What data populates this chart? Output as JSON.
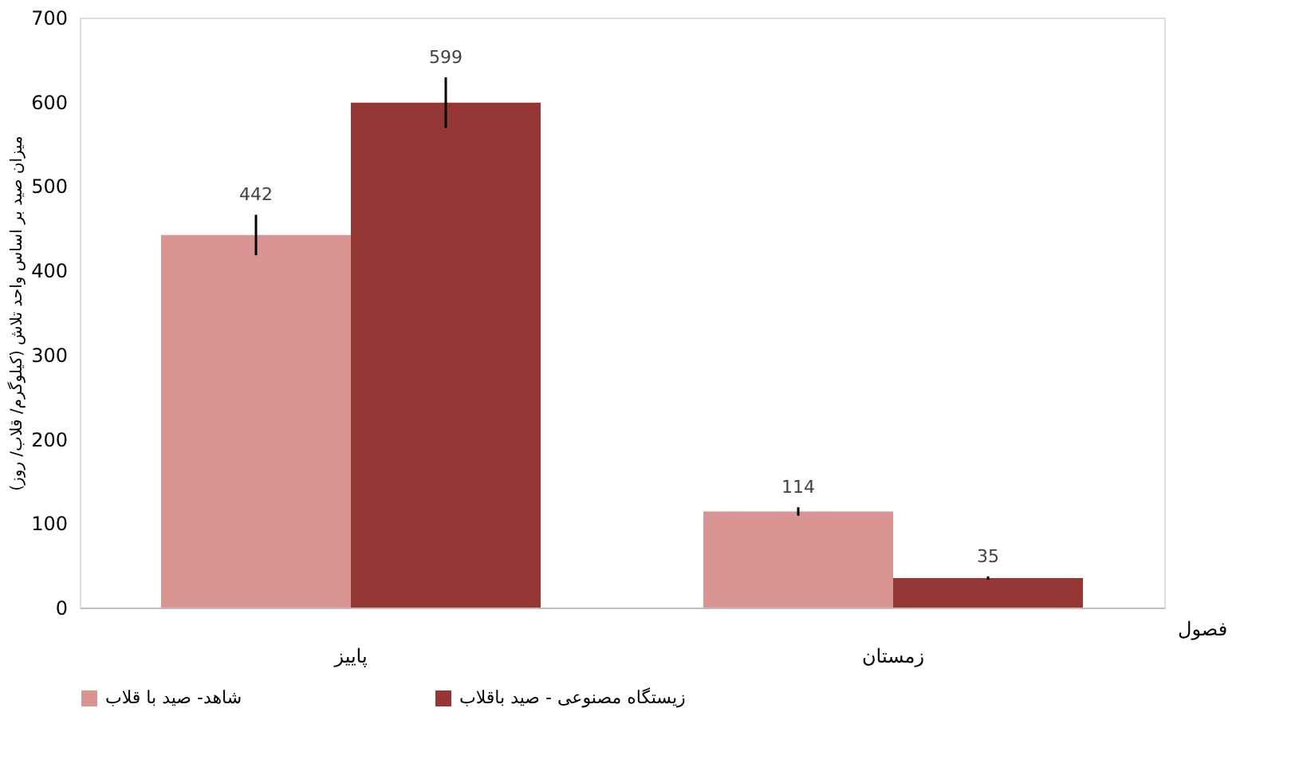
{
  "chart_data": {
    "type": "bar",
    "ylabel": "میزان صید بر اساس واحد تلاش (کیلوگرم/ قلاب/ روز)",
    "xlabel": "فصول",
    "categories": [
      "پاییز",
      "زمستان"
    ],
    "series": [
      {
        "name": "شاهد- صید با قلاب",
        "color": "#d99594",
        "values": [
          442,
          114
        ],
        "errors": [
          24,
          5
        ]
      },
      {
        "name": "زیستگاه مصنوعی - صید باقلاب",
        "color": "#953735",
        "values": [
          599,
          35
        ],
        "errors": [
          30,
          2
        ]
      }
    ],
    "ylim": [
      0,
      700
    ],
    "yticks": [
      0,
      100,
      200,
      300,
      400,
      500,
      600,
      700
    ],
    "data_labels": true,
    "grid": false,
    "legend": "bottom"
  }
}
